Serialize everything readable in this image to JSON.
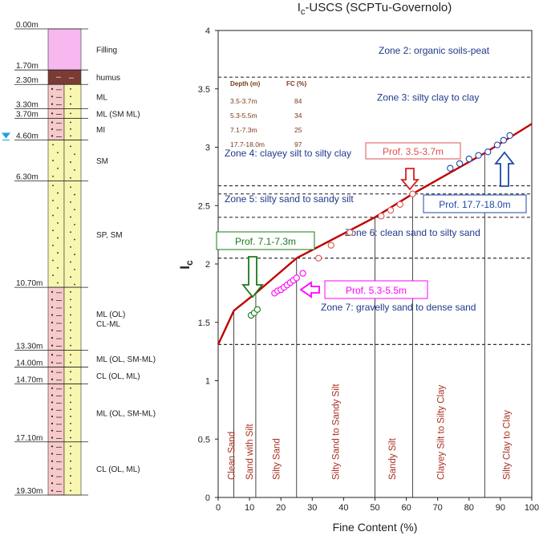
{
  "colors": {
    "curve": "#c00000",
    "red_points": "#e05050",
    "magenta": "#ff00ff",
    "blue": "#1f4aa8",
    "green": "#1a7a1a",
    "depth_text": "#7a3b1a",
    "zone_text": "#1f3a8a",
    "filling": "#f7b8f0",
    "humus": "#7a3b35",
    "silt": "#f8c9c9",
    "sand": "#f8f6b0"
  },
  "borehole": {
    "depths": [
      "0.00m",
      "1.70m",
      "2.30m",
      "3.30m",
      "3.70m",
      "4.60m",
      "6.30m",
      "10.70m",
      "13.30m",
      "14.00m",
      "14.70m",
      "17.10m",
      "19.30m"
    ],
    "layers": [
      {
        "label": "Filling",
        "top": 0.0,
        "bottom": 1.7,
        "type": "filling"
      },
      {
        "label": "humus",
        "top": 1.7,
        "bottom": 2.3,
        "type": "humus"
      },
      {
        "label": "ML",
        "top": 2.3,
        "bottom": 3.3,
        "type": "silt"
      },
      {
        "label": "ML (SM ML)",
        "top": 3.3,
        "bottom": 3.7,
        "type": "silt"
      },
      {
        "label": "MI",
        "top": 3.7,
        "bottom": 4.6,
        "type": "silt"
      },
      {
        "label": "SM",
        "top": 4.6,
        "bottom": 6.3,
        "type": "sand"
      },
      {
        "label": "SP, SM",
        "top": 6.3,
        "bottom": 10.7,
        "type": "sand"
      },
      {
        "label": "ML (OL)\nCL-ML",
        "top": 10.7,
        "bottom": 13.3,
        "type": "silt"
      },
      {
        "label": "ML (OL, SM-ML)",
        "top": 13.3,
        "bottom": 14.0,
        "type": "silt"
      },
      {
        "label": "CL (OL, ML)",
        "top": 14.0,
        "bottom": 14.7,
        "type": "silt"
      },
      {
        "label": "ML (OL, SM-ML)",
        "top": 14.7,
        "bottom": 17.1,
        "type": "silt"
      },
      {
        "label": "CL (OL, ML)",
        "top": 17.1,
        "bottom": 19.3,
        "type": "silt"
      }
    ],
    "water_level_depth": 4.6
  },
  "chart_data": {
    "type": "scatter",
    "title": "I",
    "title_sub": "c",
    "title_rest": "-USCS (SCPTu-Governolo)",
    "xlabel": "Fine Content (%)",
    "ylabel": "I",
    "ylabel_sub": "c",
    "xlim": [
      0,
      100
    ],
    "ylim": [
      0,
      4
    ],
    "xticks": [
      "0",
      "10",
      "20",
      "30",
      "40",
      "50",
      "60",
      "70",
      "80",
      "90",
      "100"
    ],
    "yticks": [
      "0",
      "0.5",
      "1",
      "1.5",
      "2",
      "2.5",
      "3",
      "3.5",
      "4"
    ],
    "zone_boundaries": [
      1.31,
      2.05,
      2.4,
      2.6,
      2.67,
      3.6
    ],
    "zones": [
      {
        "label": "Zone 2: organic soils-peat",
        "ic": 3.8
      },
      {
        "label": "Zone 3: silty clay to clay",
        "ic": 3.4
      },
      {
        "label": "Zone 4: clayey silt to silty clay",
        "ic": 2.92
      },
      {
        "label": "Zone 5: silty sand to sandy silt",
        "ic": 2.53
      },
      {
        "label": "Zone 6: clean sand to silty sand",
        "ic": 2.24
      },
      {
        "label": "Zone 7: gravelly sand to dense sand",
        "ic": 1.6
      }
    ],
    "uscs_boundaries": [
      5,
      12,
      25,
      50,
      62,
      85
    ],
    "uscs_labels": [
      {
        "label": "Clean Sand",
        "x": 4.2
      },
      {
        "label": "Sand with Silt",
        "x": 10
      },
      {
        "label": "Silty Sand",
        "x": 18.5
      },
      {
        "label": "Silty Sand to Sandy Silt",
        "x": 37.5
      },
      {
        "label": "Sandy Silt",
        "x": 55.5
      },
      {
        "label": "Clayey Silt to Silty Clay",
        "x": 71
      },
      {
        "label": "Silty Clay to Clay",
        "x": 92
      }
    ],
    "curve": {
      "x": [
        0,
        5,
        12,
        25,
        50,
        62,
        85,
        100
      ],
      "y": [
        1.31,
        1.6,
        1.75,
        2.05,
        2.4,
        2.6,
        2.95,
        3.2
      ]
    },
    "series": [
      {
        "name": "Prof. 3.5-3.7m",
        "color": "#e05050",
        "x": [
          32,
          36,
          42,
          52,
          55,
          58,
          62
        ],
        "y": [
          2.05,
          2.16,
          2.27,
          2.41,
          2.46,
          2.51,
          2.6
        ]
      },
      {
        "name": "Prof. 5.3-5.5m",
        "color": "#ff00ff",
        "x": [
          18,
          19,
          20,
          21,
          22,
          23,
          24,
          25,
          27
        ],
        "y": [
          1.75,
          1.77,
          1.78,
          1.8,
          1.82,
          1.84,
          1.86,
          1.88,
          1.92
        ]
      },
      {
        "name": "Prof. 7.1-7.3m",
        "color": "#1a7a1a",
        "x": [
          10.5,
          11.5,
          12.5
        ],
        "y": [
          1.56,
          1.58,
          1.61
        ]
      },
      {
        "name": "Prof. 17.7-18.0m",
        "color": "#1f4aa8",
        "x": [
          74,
          77,
          80,
          83,
          86,
          89,
          91,
          93
        ],
        "y": [
          2.82,
          2.86,
          2.9,
          2.93,
          2.96,
          3.02,
          3.06,
          3.1
        ]
      }
    ],
    "fc_table": {
      "headers": [
        "Depth (m)",
        "FC (%)"
      ],
      "rows": [
        [
          "3.5-3.7m",
          "84"
        ],
        [
          "5.3-5.5m",
          "34"
        ],
        [
          "7.1-7.3m",
          "25"
        ],
        [
          "17.7-18.0m",
          "97"
        ]
      ]
    },
    "callouts": {
      "prof_35": "Prof. 3.5-3.7m",
      "prof_177": "Prof. 17.7-18.0m",
      "prof_71": "Prof. 7.1-7.3m",
      "prof_53": "Prof. 5.3-5.5m"
    }
  }
}
